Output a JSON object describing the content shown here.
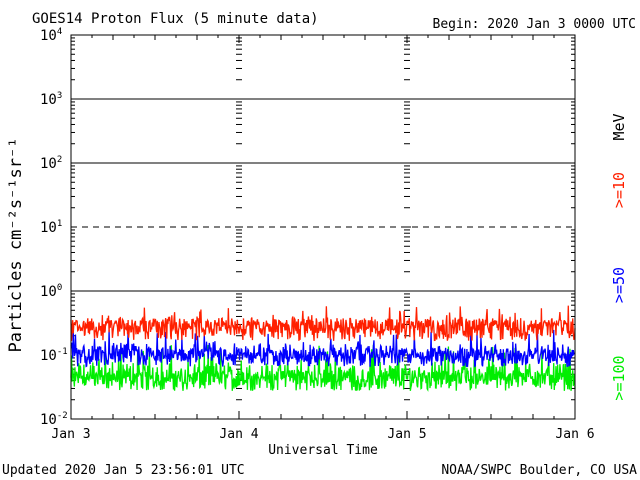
{
  "header": {
    "title": "GOES14 Proton Flux (5 minute data)",
    "begin": "Begin: 2020 Jan 3 0000 UTC"
  },
  "footer": {
    "updated": "Updated 2020 Jan  5 23:56:01 UTC",
    "source": "NOAA/SWPC Boulder, CO USA"
  },
  "chart_data": {
    "type": "line",
    "title": "GOES14 Proton Flux (5 minute data)",
    "xlabel": "Universal Time",
    "ylabel": "Particles cm⁻²s⁻¹sr⁻¹",
    "y_scale": "log",
    "ylim": [
      0.01,
      10000
    ],
    "xlim": [
      "2020-01-03",
      "2020-01-06"
    ],
    "x_ticks": [
      "Jan 3",
      "Jan 4",
      "Jan 5",
      "Jan 6"
    ],
    "y_ticks": [
      {
        "value": 10000,
        "base": "10",
        "exp": "4"
      },
      {
        "value": 1000,
        "base": "10",
        "exp": "3"
      },
      {
        "value": 100,
        "base": "10",
        "exp": "2"
      },
      {
        "value": 10,
        "base": "10",
        "exp": "1"
      },
      {
        "value": 1,
        "base": "10",
        "exp": "0"
      },
      {
        "value": 0.1,
        "base": "10",
        "exp": "-1"
      },
      {
        "value": 0.01,
        "base": "10",
        "exp": "-2"
      }
    ],
    "threshold_lines": [
      {
        "value": 1000,
        "style": "solid"
      },
      {
        "value": 100,
        "style": "solid"
      },
      {
        "value": 10,
        "style": "dashed"
      },
      {
        "value": 1,
        "style": "solid"
      }
    ],
    "unit_label": "MeV",
    "series": [
      {
        "name": ">=10",
        "color": "#ff2000",
        "typical_value": 0.25,
        "range": [
          0.15,
          0.6
        ]
      },
      {
        "name": ">=50",
        "color": "#0000ff",
        "typical_value": 0.09,
        "range": [
          0.06,
          0.25
        ]
      },
      {
        "name": ">=100",
        "color": "#00ee00",
        "typical_value": 0.04,
        "range": [
          0.025,
          0.15
        ]
      }
    ]
  }
}
